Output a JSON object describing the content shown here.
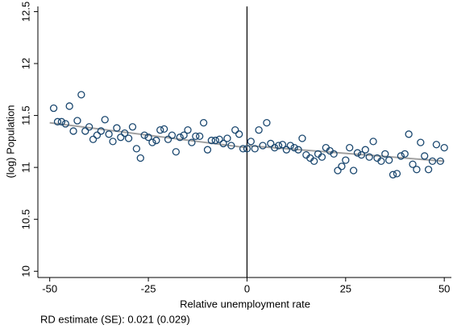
{
  "chart_data": {
    "type": "scatter",
    "x_label": "Relative unemployment rate",
    "y_label": "(log) Population",
    "note": "RD estimate (SE): 0.021 (0.029)",
    "xlim": [
      -53,
      51.8
    ],
    "ylim": [
      9.94,
      12.55
    ],
    "xticks": [
      -50,
      -25,
      0,
      25,
      50
    ],
    "yticks": [
      10,
      10.5,
      11,
      11.5,
      12,
      12.5
    ],
    "vline": 0,
    "series": [
      {
        "color": "#1a476f",
        "x": [
          -49,
          -48,
          -47,
          -46,
          -45,
          -44,
          -43,
          -42,
          -41,
          -40,
          -39,
          -38,
          -37,
          -36,
          -35,
          -34,
          -33,
          -32,
          -31,
          -30,
          -29,
          -28,
          -27,
          -26,
          -25,
          -24,
          -23,
          -22,
          -21,
          -20,
          -19,
          -18,
          -17,
          -16,
          -15,
          -14,
          -13,
          -12,
          -11,
          -10,
          -9,
          -8,
          -7,
          -6,
          -5,
          -4,
          -3,
          -2,
          -1,
          0,
          1,
          2,
          3,
          4,
          5,
          6,
          7,
          8,
          9,
          10,
          11,
          12,
          13,
          14,
          15,
          16,
          17,
          18,
          19,
          20,
          21,
          22,
          23,
          24,
          25,
          26,
          27,
          28,
          29,
          30,
          31,
          32,
          33,
          34,
          35,
          36,
          37,
          38,
          39,
          40,
          41,
          42,
          43,
          44,
          45,
          46,
          47,
          48,
          49,
          50
        ],
        "values": [
          11.57,
          11.44,
          11.44,
          11.42,
          11.59,
          11.35,
          11.45,
          11.7,
          11.35,
          11.39,
          11.27,
          11.31,
          11.35,
          11.46,
          11.32,
          11.25,
          11.38,
          11.29,
          11.33,
          11.28,
          11.39,
          11.18,
          11.09,
          11.31,
          11.29,
          11.24,
          11.26,
          11.36,
          11.37,
          11.27,
          11.31,
          11.15,
          11.29,
          11.31,
          11.36,
          11.24,
          11.3,
          11.3,
          11.43,
          11.17,
          11.26,
          11.26,
          11.27,
          11.23,
          11.28,
          11.21,
          11.36,
          11.32,
          11.18,
          11.18,
          11.25,
          11.18,
          11.36,
          11.21,
          11.43,
          11.23,
          11.19,
          11.21,
          11.22,
          11.17,
          11.21,
          11.19,
          11.17,
          11.28,
          11.12,
          11.09,
          11.06,
          11.13,
          11.1,
          11.19,
          11.16,
          11.13,
          10.97,
          11.01,
          11.07,
          11.19,
          10.97,
          11.14,
          11.12,
          11.17,
          11.1,
          11.25,
          11.09,
          11.06,
          11.13,
          11.07,
          10.93,
          10.94,
          11.11,
          11.13,
          11.32,
          11.03,
          10.98,
          11.24,
          11.11,
          10.98,
          11.06,
          11.22,
          11.06,
          11.19
        ]
      }
    ],
    "lines": [
      {
        "color": "#a0a0a0",
        "x": [
          -50,
          0
        ],
        "values": [
          11.43,
          11.19
        ]
      },
      {
        "color": "#a0a0a0",
        "x": [
          0,
          50
        ],
        "values": [
          11.21,
          11.06
        ]
      }
    ]
  }
}
